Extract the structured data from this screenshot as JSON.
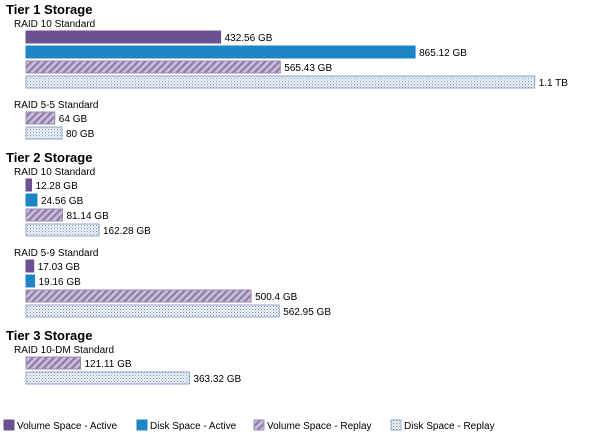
{
  "chart_data": {
    "type": "bar",
    "orientation": "horizontal",
    "unit": "GB",
    "legend_position": "bottom",
    "series": [
      {
        "key": "vol_active",
        "name": "Volume Space - Active",
        "color": "#6b5190",
        "pattern": "solid"
      },
      {
        "key": "disk_active",
        "name": "Disk Space - Active",
        "color": "#1f86c6",
        "pattern": "solid"
      },
      {
        "key": "vol_replay",
        "name": "Volume Space - Replay",
        "color": "#9a8ab2",
        "pattern": "diagonal-hatch"
      },
      {
        "key": "disk_replay",
        "name": "Disk Space - Replay",
        "color": "#8fa5c4",
        "pattern": "dotted"
      }
    ],
    "tiers": [
      {
        "title": "Tier 1 Storage",
        "groups": [
          {
            "name": "RAID 10 Standard",
            "bars": [
              {
                "series": "vol_active",
                "value": 432.56,
                "label": "432.56 GB"
              },
              {
                "series": "disk_active",
                "value": 865.12,
                "label": "865.12 GB"
              },
              {
                "series": "vol_replay",
                "value": 565.43,
                "label": "565.43 GB"
              },
              {
                "series": "disk_replay",
                "value": 1130.86,
                "label": "1.1 TB"
              }
            ]
          },
          {
            "name": "RAID 5-5 Standard",
            "bars": [
              {
                "series": "vol_replay",
                "value": 64,
                "label": "64 GB"
              },
              {
                "series": "disk_replay",
                "value": 80,
                "label": "80 GB"
              }
            ]
          }
        ]
      },
      {
        "title": "Tier 2 Storage",
        "groups": [
          {
            "name": "RAID 10 Standard",
            "bars": [
              {
                "series": "vol_active",
                "value": 12.28,
                "label": "12.28 GB"
              },
              {
                "series": "disk_active",
                "value": 24.56,
                "label": "24.56 GB"
              },
              {
                "series": "vol_replay",
                "value": 81.14,
                "label": "81.14 GB"
              },
              {
                "series": "disk_replay",
                "value": 162.28,
                "label": "162.28 GB"
              }
            ]
          },
          {
            "name": "RAID 5-9 Standard",
            "bars": [
              {
                "series": "vol_active",
                "value": 17.03,
                "label": "17.03 GB"
              },
              {
                "series": "disk_active",
                "value": 19.16,
                "label": "19.16 GB"
              },
              {
                "series": "vol_replay",
                "value": 500.4,
                "label": "500.4 GB"
              },
              {
                "series": "disk_replay",
                "value": 562.95,
                "label": "562.95 GB"
              }
            ]
          }
        ]
      },
      {
        "title": "Tier 3 Storage",
        "groups": [
          {
            "name": "RAID 10-DM Standard",
            "bars": [
              {
                "series": "vol_replay",
                "value": 121.11,
                "label": "121.11 GB"
              },
              {
                "series": "disk_replay",
                "value": 363.32,
                "label": "363.32 GB"
              }
            ]
          }
        ]
      }
    ]
  }
}
